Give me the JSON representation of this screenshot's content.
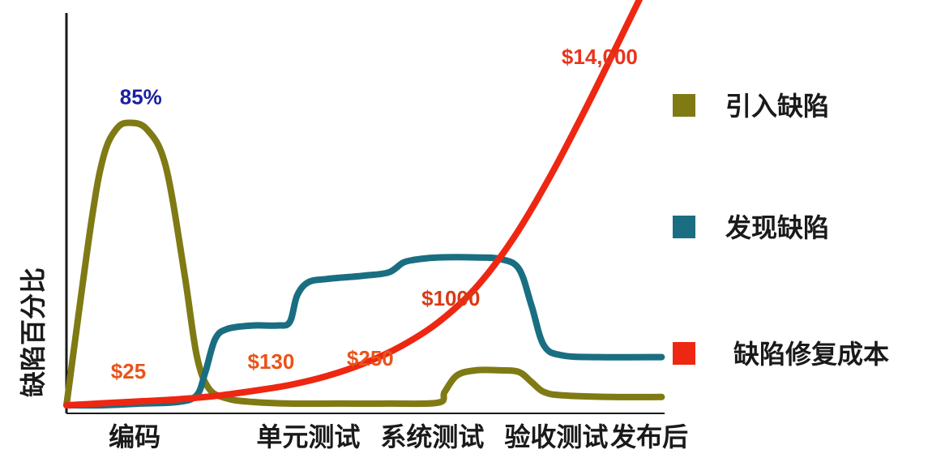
{
  "chart_data": {
    "type": "line",
    "ylabel": "缺陷百分比",
    "categories": [
      "编码",
      "单元测试",
      "系统测试",
      "验收测试",
      "发布后"
    ],
    "series": [
      {
        "name": "引入缺陷",
        "color": "#7f7a14",
        "x": [
          0,
          0.2,
          0.3,
          0.4,
          0.5,
          0.65,
          0.8,
          0.95,
          1.05,
          1.15,
          1.3,
          1.5,
          1.8,
          2.2,
          2.6,
          3.0,
          3.05,
          3.15,
          3.3,
          3.5,
          3.65,
          3.75,
          3.85,
          4.0,
          4.4,
          4.8
        ],
        "values": [
          0,
          55,
          75,
          83,
          85,
          83,
          72,
          40,
          15,
          5,
          2,
          1,
          0.5,
          0.5,
          0.5,
          0.8,
          4,
          9,
          10.5,
          10.5,
          10,
          7,
          4,
          3,
          2.5,
          2.5
        ]
      },
      {
        "name": "发现缺陷",
        "color": "#1a6e82",
        "x": [
          0,
          0.3,
          0.6,
          0.9,
          1.05,
          1.12,
          1.2,
          1.3,
          1.5,
          1.7,
          1.8,
          1.86,
          1.95,
          2.1,
          2.4,
          2.6,
          2.72,
          2.85,
          3.0,
          3.3,
          3.5,
          3.65,
          3.75,
          3.85,
          4.0,
          4.3,
          4.8
        ],
        "values": [
          0,
          0,
          0.5,
          1,
          3,
          10,
          20,
          23,
          24,
          24,
          25,
          33,
          37,
          38,
          39,
          40,
          43,
          44,
          44.5,
          44.5,
          44,
          41,
          30,
          18,
          15,
          14.5,
          14.5
        ]
      },
      {
        "name": "缺陷修复成本",
        "color": "#ee2712",
        "x": [
          0,
          0.3,
          0.6,
          0.9,
          1.2,
          1.5,
          1.8,
          2.1,
          2.4,
          2.7,
          3.0,
          3.3,
          3.6,
          3.9,
          4.2,
          4.5,
          4.8
        ],
        "values": [
          0,
          0.6,
          1.2,
          1.8,
          2.8,
          4.3,
          6.1,
          8.8,
          12.6,
          17.8,
          25.0,
          35.3,
          50.0,
          68.8,
          90.2,
          112.9,
          135.8
        ]
      }
    ],
    "annotations": [
      {
        "text": "85%",
        "color": "#1b1fa0"
      },
      {
        "text": "$25",
        "color": "#e8541a"
      },
      {
        "text": "$130",
        "color": "#e8541a"
      },
      {
        "text": "$250",
        "color": "#e8541a"
      },
      {
        "text": "$1000",
        "color": "#d93a16"
      },
      {
        "text": "$14,000",
        "color": "#e8341a"
      }
    ],
    "legend": {
      "placement": "right",
      "items": [
        "引入缺陷",
        "发现缺陷",
        "缺陷修复成本"
      ]
    },
    "grid": false
  }
}
